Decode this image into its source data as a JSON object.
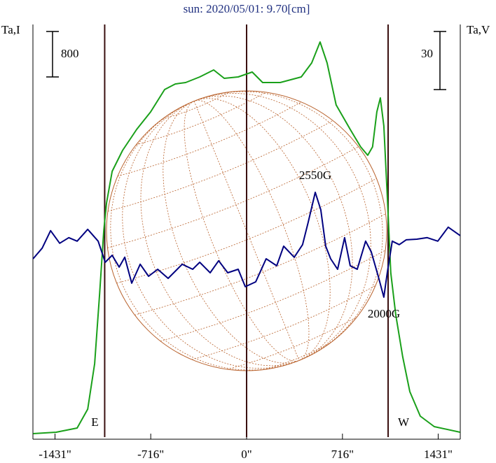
{
  "chart_data": {
    "type": "line",
    "title": "sun: 2020/05/01: 9.70[cm]",
    "y_label": "Ta,I",
    "y2_label": "Ta,V",
    "xlim": [
      -1596,
      1596
    ],
    "ylim": [
      0,
      7300
    ],
    "y2lim": [
      -93,
      121
    ],
    "xticks": [
      {
        "value": -1431,
        "label": "-1431\""
      },
      {
        "value": -716,
        "label": "-716\""
      },
      {
        "value": 0,
        "label": "0\""
      },
      {
        "value": 716,
        "label": "716\""
      },
      {
        "value": 1431,
        "label": "1431\""
      }
    ],
    "vlines": [
      {
        "value": -1060,
        "label": "E"
      },
      {
        "value": 0
      },
      {
        "value": 1057,
        "label": "W"
      }
    ],
    "scale_bars": [
      {
        "value": 800,
        "axis": "y"
      },
      {
        "value": 30,
        "axis": "y2"
      }
    ],
    "annotations": [
      "2550G",
      "2000G"
    ],
    "series": [
      {
        "name": "Ta,I",
        "color": "#1aa01a",
        "axis": "y",
        "x": [
          -1595,
          -1423,
          -1266,
          -1187,
          -1135,
          -1098,
          -1067,
          -1046,
          -1004,
          -926,
          -821,
          -717,
          -612,
          -533,
          -455,
          -350,
          -246,
          -167,
          -63,
          42,
          120,
          251,
          408,
          486,
          549,
          601,
          669,
          774,
          852,
          905,
          941,
          973,
          999,
          1025,
          1051,
          1077,
          1114,
          1166,
          1219,
          1297,
          1402,
          1595
        ],
        "values": [
          98,
          123,
          197,
          529,
          1329,
          2560,
          3668,
          4161,
          4715,
          5084,
          5453,
          5761,
          6155,
          6253,
          6278,
          6377,
          6500,
          6352,
          6377,
          6463,
          6278,
          6278,
          6377,
          6623,
          6992,
          6623,
          5884,
          5453,
          5146,
          4998,
          5146,
          5761,
          6007,
          5515,
          4284,
          2930,
          2191,
          1453,
          837,
          406,
          222,
          123
        ]
      },
      {
        "name": "Ta,V",
        "color": "#000080",
        "axis": "y2",
        "x": [
          -1595,
          -1527,
          -1464,
          -1396,
          -1328,
          -1266,
          -1187,
          -1109,
          -1056,
          -1004,
          -952,
          -910,
          -858,
          -795,
          -732,
          -664,
          -586,
          -481,
          -403,
          -350,
          -272,
          -209,
          -141,
          -63,
          -10,
          68,
          146,
          225,
          277,
          356,
          418,
          460,
          513,
          554,
          591,
          628,
          680,
          732,
          774,
          826,
          889,
          931,
          983,
          1025,
          1051,
          1088,
          1140,
          1192,
          1271,
          1349,
          1428,
          1506,
          1595
        ],
        "values": [
          0.1,
          5.6,
          14.6,
          8.1,
          11.0,
          9.2,
          15.3,
          9.2,
          -1.7,
          1.9,
          -4.2,
          0.9,
          -12.5,
          -2.7,
          -8.9,
          -5.3,
          -10.0,
          -2.7,
          -5.3,
          -1.7,
          -7.1,
          -0.9,
          -7.1,
          -5.3,
          -14.3,
          -11.8,
          0.1,
          -3.5,
          6.6,
          0.9,
          7.4,
          18.9,
          34.4,
          25.4,
          6.6,
          0.1,
          -5.3,
          11.0,
          -3.5,
          -5.3,
          9.2,
          3.7,
          -8.9,
          -19.7,
          -7.1,
          9.2,
          7.4,
          9.9,
          10.2,
          11.0,
          9.2,
          16.4,
          12.1
        ]
      }
    ]
  }
}
